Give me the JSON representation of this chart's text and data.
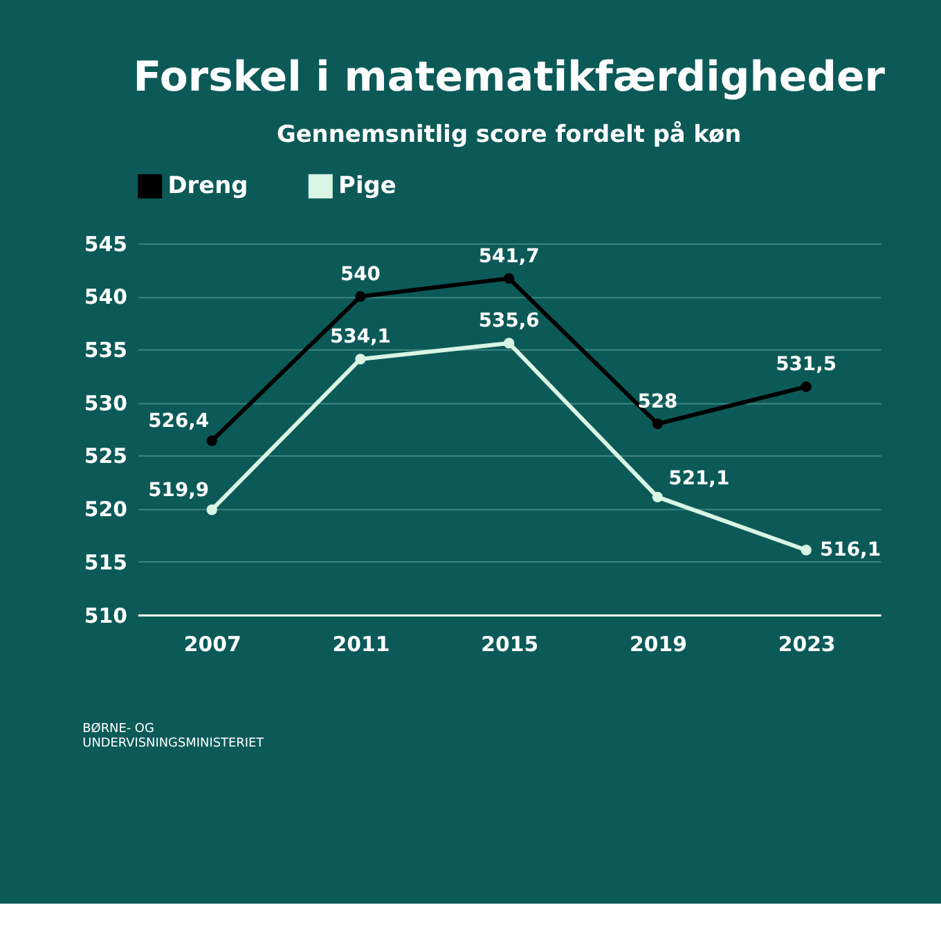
{
  "chart_data": {
    "type": "line",
    "title": "Forskel i matematikfærdigheder",
    "subtitle": "Gennemsnitlig score fordelt på køn",
    "categories": [
      "2007",
      "2011",
      "2015",
      "2019",
      "2023"
    ],
    "series": [
      {
        "name": "Dreng",
        "color": "#000000",
        "values": [
          526.4,
          540,
          541.7,
          528,
          531.5
        ],
        "value_labels": [
          "526,4",
          "540",
          "541,7",
          "528",
          "531,5"
        ]
      },
      {
        "name": "Pige",
        "color": "#d9f5e3",
        "values": [
          519.9,
          534.1,
          535.6,
          521.1,
          516.1
        ],
        "value_labels": [
          "519,9",
          "534,1",
          "535,6",
          "521,1",
          "516,1"
        ]
      }
    ],
    "ylim": [
      510,
      545
    ],
    "yticks": [
      510,
      515,
      520,
      525,
      530,
      535,
      540,
      545
    ],
    "grid": "y",
    "legend": "top",
    "marker": "circle",
    "annotations": [
      "BØRNE- OG\nUNDERVISNINGSMINISTERIET"
    ]
  }
}
